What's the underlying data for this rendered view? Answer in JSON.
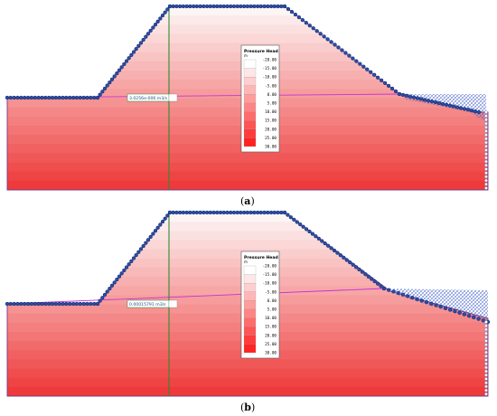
{
  "panels": [
    {
      "id": "a",
      "caption_letter": "a",
      "flux_label": "3.0256e-006 m3/s",
      "legend_title": "Pressure Head",
      "legend_unit": "m",
      "legend_ticks": [
        "-20.00",
        "-15.00",
        "-10.00",
        "-5.00",
        "0.00",
        "5.00",
        "10.00",
        "15.00",
        "20.00",
        "25.00",
        "30.00"
      ],
      "seepage_variant": "steep"
    },
    {
      "id": "b",
      "caption_letter": "b",
      "flux_label": "0.00015791 m3/s",
      "legend_title": "Pressure Head",
      "legend_unit": "m",
      "legend_ticks": [
        "-20.00",
        "-15.00",
        "-10.00",
        "-5.00",
        "0.00",
        "5.00",
        "10.00",
        "15.00",
        "20.00",
        "25.00",
        "30.00"
      ],
      "seepage_variant": "mild"
    }
  ],
  "colors": {
    "node_fill": "#2b4ea8",
    "node_stroke": "#0f2466",
    "boundary": "#7a3a8a",
    "phreatic_line": "#c433d6",
    "flux_section": "#2e8b2e",
    "gradient_top": "#fdf2f2",
    "gradient_bottom": "#ee3b3b",
    "hatch": "#3a5ac8"
  }
}
